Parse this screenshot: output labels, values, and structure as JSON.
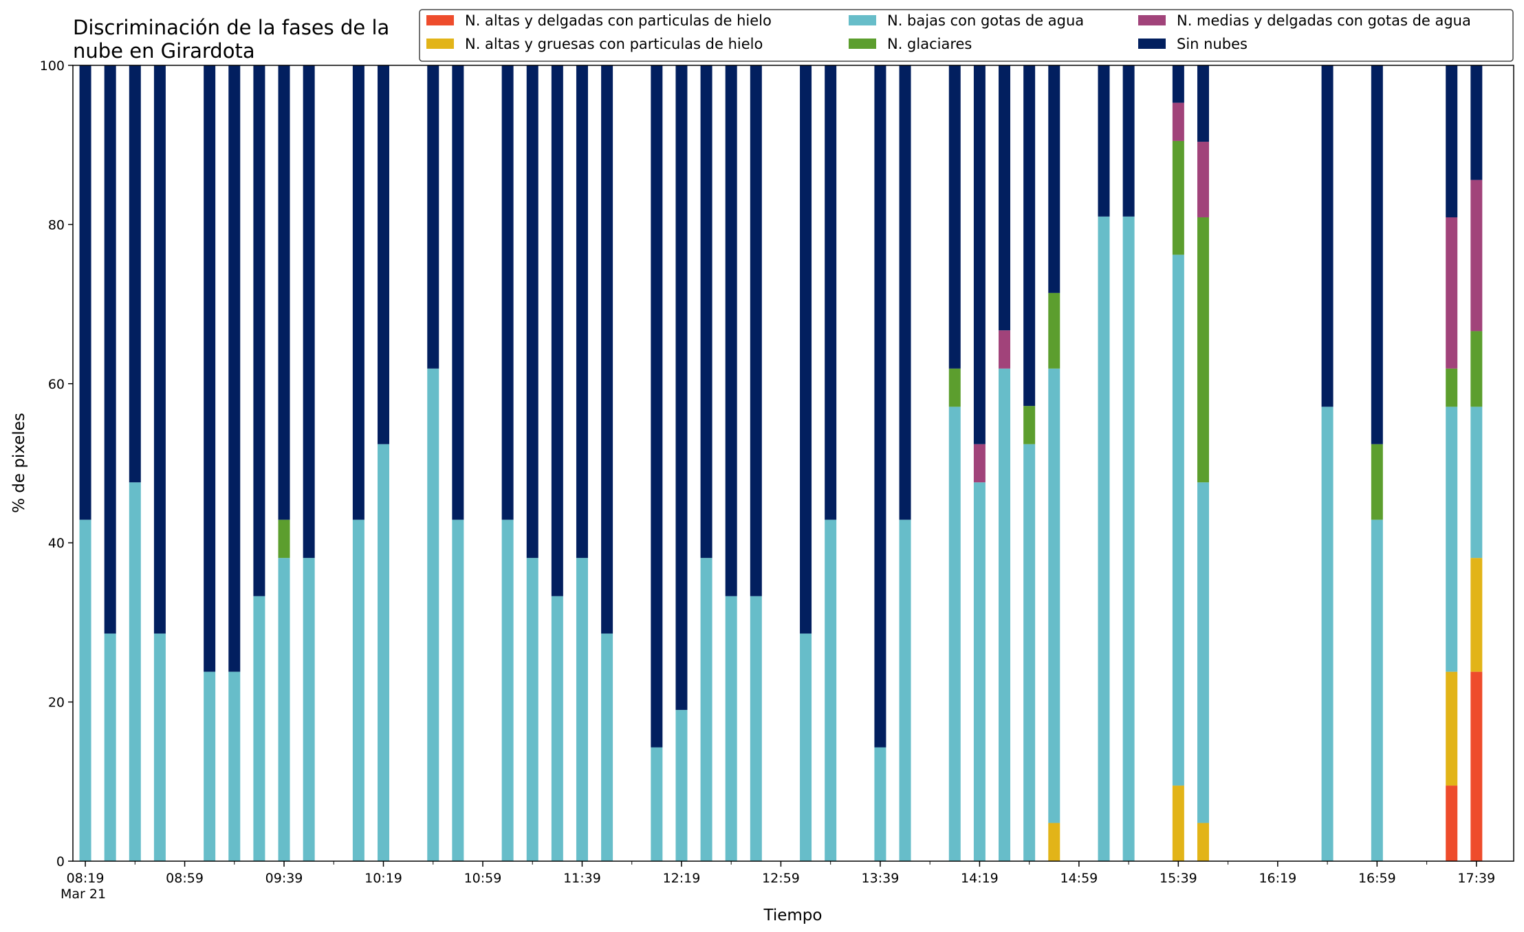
{
  "chart_data": {
    "type": "bar",
    "stacked": true,
    "title": "Discriminación de la fases de la nube en Girardota",
    "title_lines": [
      "Discriminación de la fases de la",
      "nube en Girardota"
    ],
    "xlabel": "Tiempo",
    "ylabel": "% de pixeles",
    "ylim": [
      0,
      100
    ],
    "yticks": [
      0,
      20,
      40,
      60,
      80,
      100
    ],
    "xlim": [
      "08:14",
      "17:54"
    ],
    "date_label": "Mar 21",
    "xtick_labels": [
      "08:19",
      "08:59",
      "09:39",
      "10:19",
      "10:59",
      "11:39",
      "12:19",
      "12:59",
      "13:39",
      "14:19",
      "14:59",
      "15:39",
      "16:19",
      "16:59",
      "17:39"
    ],
    "legend_position": "top-right",
    "grid": false,
    "series": [
      {
        "name": "N. altas y delgadas con particulas de hielo",
        "color": "#ee4c2c"
      },
      {
        "name": "N. altas y gruesas con particulas de hielo",
        "color": "#e2b418"
      },
      {
        "name": "N. bajas con gotas de agua",
        "color": "#67bdc9"
      },
      {
        "name": "N. glaciares",
        "color": "#5c9e2e"
      },
      {
        "name": "N. medias y delgadas con gotas de agua",
        "color": "#a1437a"
      },
      {
        "name": "Sin nubes",
        "color": "#021f5f"
      }
    ],
    "bars": [
      {
        "time": "08:19",
        "values": [
          0,
          0,
          42.9,
          0,
          0,
          57.1
        ]
      },
      {
        "time": "08:29",
        "values": [
          0,
          0,
          28.6,
          0,
          0,
          71.4
        ]
      },
      {
        "time": "08:39",
        "values": [
          0,
          0,
          47.6,
          0,
          0,
          52.4
        ]
      },
      {
        "time": "08:49",
        "values": [
          0,
          0,
          28.6,
          0,
          0,
          71.4
        ]
      },
      {
        "time": "09:09",
        "values": [
          0,
          0,
          23.8,
          0,
          0,
          76.2
        ]
      },
      {
        "time": "09:19",
        "values": [
          0,
          0,
          23.8,
          0,
          0,
          76.2
        ]
      },
      {
        "time": "09:29",
        "values": [
          0,
          0,
          33.3,
          0,
          0,
          66.7
        ]
      },
      {
        "time": "09:39",
        "values": [
          0,
          0,
          38.1,
          4.8,
          0,
          57.1
        ]
      },
      {
        "time": "09:49",
        "values": [
          0,
          0,
          38.1,
          0,
          0,
          61.9
        ]
      },
      {
        "time": "10:09",
        "values": [
          0,
          0,
          42.9,
          0,
          0,
          57.1
        ]
      },
      {
        "time": "10:19",
        "values": [
          0,
          0,
          52.4,
          0,
          0,
          47.6
        ]
      },
      {
        "time": "10:39",
        "values": [
          0,
          0,
          61.9,
          0,
          0,
          38.1
        ]
      },
      {
        "time": "10:49",
        "values": [
          0,
          0,
          42.9,
          0,
          0,
          57.1
        ]
      },
      {
        "time": "11:09",
        "values": [
          0,
          0,
          42.9,
          0,
          0,
          57.1
        ]
      },
      {
        "time": "11:19",
        "values": [
          0,
          0,
          38.1,
          0,
          0,
          61.9
        ]
      },
      {
        "time": "11:29",
        "values": [
          0,
          0,
          33.3,
          0,
          0,
          66.7
        ]
      },
      {
        "time": "11:39",
        "values": [
          0,
          0,
          38.1,
          0,
          0,
          61.9
        ]
      },
      {
        "time": "11:49",
        "values": [
          0,
          0,
          28.6,
          0,
          0,
          71.4
        ]
      },
      {
        "time": "12:09",
        "values": [
          0,
          0,
          14.3,
          0,
          0,
          85.7
        ]
      },
      {
        "time": "12:19",
        "values": [
          0,
          0,
          19.0,
          0,
          0,
          81.0
        ]
      },
      {
        "time": "12:29",
        "values": [
          0,
          0,
          38.1,
          0,
          0,
          61.9
        ]
      },
      {
        "time": "12:39",
        "values": [
          0,
          0,
          33.3,
          0,
          0,
          66.7
        ]
      },
      {
        "time": "12:49",
        "values": [
          0,
          0,
          33.3,
          0,
          0,
          66.7
        ]
      },
      {
        "time": "13:09",
        "values": [
          0,
          0,
          28.6,
          0,
          0,
          71.4
        ]
      },
      {
        "time": "13:19",
        "values": [
          0,
          0,
          42.9,
          0,
          0,
          57.1
        ]
      },
      {
        "time": "13:39",
        "values": [
          0,
          0,
          14.3,
          0,
          0,
          85.7
        ]
      },
      {
        "time": "13:49",
        "values": [
          0,
          0,
          42.9,
          0,
          0,
          57.1
        ]
      },
      {
        "time": "14:09",
        "values": [
          0,
          0,
          57.1,
          4.8,
          0,
          38.1
        ]
      },
      {
        "time": "14:19",
        "values": [
          0,
          0,
          47.6,
          0,
          4.8,
          47.6
        ]
      },
      {
        "time": "14:29",
        "values": [
          0,
          0,
          61.9,
          0,
          4.8,
          33.3
        ]
      },
      {
        "time": "14:39",
        "values": [
          0,
          0,
          52.4,
          4.8,
          0,
          42.8
        ]
      },
      {
        "time": "14:49",
        "values": [
          0,
          4.8,
          57.1,
          9.5,
          0,
          28.6
        ]
      },
      {
        "time": "15:09",
        "values": [
          0,
          0,
          81.0,
          0,
          0,
          19.0
        ]
      },
      {
        "time": "15:19",
        "values": [
          0,
          0,
          81.0,
          0,
          0,
          19.0
        ]
      },
      {
        "time": "15:39",
        "values": [
          0,
          9.5,
          66.7,
          14.3,
          4.8,
          4.7
        ]
      },
      {
        "time": "15:49",
        "values": [
          0,
          4.8,
          42.8,
          33.3,
          9.5,
          9.6
        ]
      },
      {
        "time": "16:39",
        "values": [
          0,
          0,
          57.1,
          0,
          0,
          42.9
        ]
      },
      {
        "time": "16:59",
        "values": [
          0,
          0,
          42.9,
          9.5,
          0,
          47.6
        ]
      },
      {
        "time": "17:29",
        "values": [
          9.5,
          14.3,
          33.3,
          4.8,
          19.0,
          19.1
        ]
      },
      {
        "time": "17:39",
        "values": [
          23.8,
          14.3,
          19.0,
          9.5,
          19.0,
          14.4
        ]
      }
    ]
  }
}
